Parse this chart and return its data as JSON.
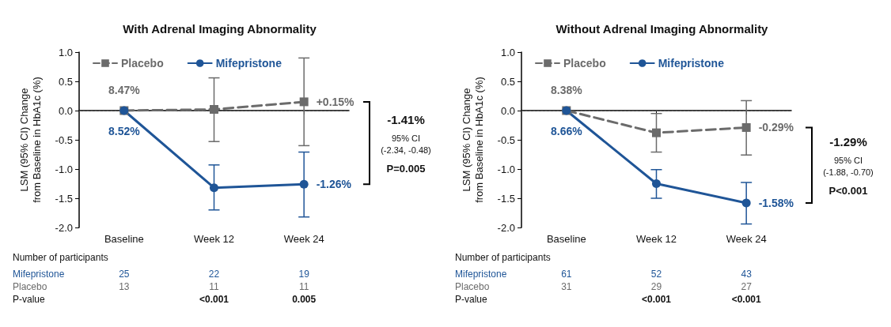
{
  "chart_data": [
    {
      "type": "line",
      "title": "With Adrenal Imaging Abnormality",
      "ylabel": "LSM (95% CI) Change\nfrom Baseline in HbA1c (%)",
      "categories": [
        "Baseline",
        "Week 12",
        "Week 24"
      ],
      "series": [
        {
          "name": "Placebo",
          "color": "#6b6b6b",
          "values": [
            0,
            0.02,
            0.15
          ],
          "errors": [
            null,
            [
              -0.53,
              0.56
            ],
            [
              -0.6,
              0.9
            ]
          ],
          "value_labels": [
            null,
            null,
            "+0.15%"
          ],
          "marker": "square",
          "line_style": "dashed"
        },
        {
          "name": "Mifepristone",
          "color": "#1f5597",
          "values": [
            0,
            -1.32,
            -1.26
          ],
          "errors": [
            null,
            [
              -1.7,
              -0.93
            ],
            [
              -1.82,
              -0.71
            ]
          ],
          "value_labels": [
            null,
            null,
            "-1.26%"
          ],
          "marker": "circle",
          "line_style": "solid"
        }
      ],
      "ylim": [
        -2,
        1
      ],
      "yticks": [
        {
          "value": -2,
          "label": "-2.0"
        },
        -1.5,
        {
          "value": -1,
          "label": "-1.0"
        },
        -0.5,
        {
          "value": 0,
          "label": "0.0"
        },
        0.5,
        {
          "value": 1,
          "label": "1.0"
        }
      ],
      "ref_lines": [
        {
          "axis": "y",
          "value": 0,
          "line_style": "dotted",
          "color": "#555555"
        }
      ],
      "grid": false,
      "legend": "top left",
      "annotations": [
        {
          "text": "8.47%",
          "x": "Baseline",
          "y": 0
        },
        {
          "text": "8.52%",
          "x": "Baseline",
          "y": 0
        },
        "-1.41%",
        "95% CI",
        "(-2.34, -0.48)",
        "P=0.005",
        "Number of participants",
        "Mifepristone",
        "25",
        "22",
        "19",
        "Placebo",
        "13",
        "11",
        "11",
        "P-value",
        "<0.001",
        "0.005"
      ]
    },
    {
      "type": "line",
      "title": "Without Adrenal Imaging Abnormality",
      "ylabel": "LSM (95% CI) Change\nfrom Baseline in HbA1c (%)",
      "categories": [
        "Baseline",
        "Week 12",
        "Week 24"
      ],
      "series": [
        {
          "name": "Placebo",
          "color": "#6b6b6b",
          "values": [
            0,
            -0.38,
            -0.29
          ],
          "errors": [
            null,
            [
              -0.71,
              -0.05
            ],
            [
              -0.76,
              0.17
            ]
          ],
          "value_labels": [
            null,
            null,
            "-0.29%"
          ],
          "marker": "square",
          "line_style": "dashed"
        },
        {
          "name": "Mifepristone",
          "color": "#1f5597",
          "values": [
            0,
            -1.25,
            -1.58
          ],
          "errors": [
            null,
            [
              -1.5,
              -1.01
            ],
            [
              -1.94,
              -1.23
            ]
          ],
          "value_labels": [
            null,
            null,
            "-1.58%"
          ],
          "marker": "circle",
          "line_style": "solid"
        }
      ],
      "ylim": [
        -2,
        1
      ],
      "yticks": [
        {
          "value": -2,
          "label": "-2.0"
        },
        -1.5,
        {
          "value": -1,
          "label": "-1.0"
        },
        -0.5,
        {
          "value": 0,
          "label": "0.0"
        },
        0.5,
        {
          "value": 1,
          "label": "1.0"
        }
      ],
      "ref_lines": [
        {
          "axis": "y",
          "value": 0,
          "line_style": "dotted",
          "color": "#555555"
        }
      ],
      "grid": false,
      "legend": "top left",
      "annotations": [
        {
          "text": "8.38%",
          "x": "Baseline",
          "y": 0
        },
        {
          "text": "8.66%",
          "x": "Baseline",
          "y": 0
        },
        "-1.29%",
        "95% CI",
        "(-1.88, -0.70)",
        "P<0.001",
        "Number of participants",
        "Mifepristone",
        "61",
        "52",
        "43",
        "Placebo",
        "31",
        "29",
        "27",
        "P-value",
        "<0.001",
        "<0.001"
      ]
    }
  ]
}
